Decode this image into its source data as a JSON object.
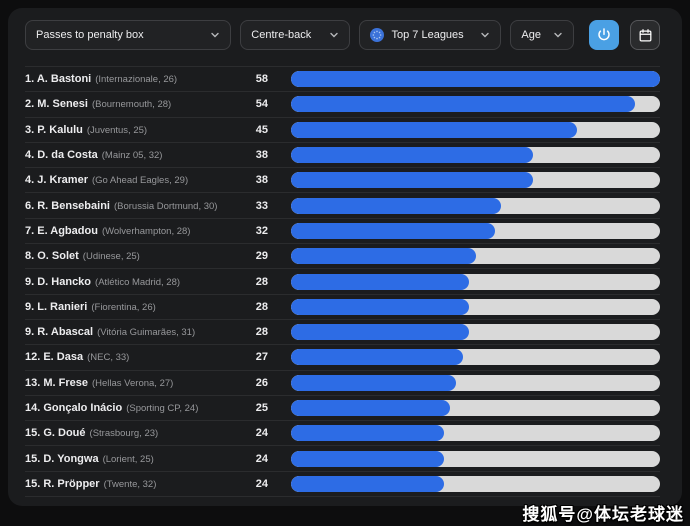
{
  "toolbar": {
    "metric": {
      "label": "Passes to penalty box"
    },
    "position": {
      "label": "Centre-back"
    },
    "league": {
      "label": "Top 7 Leagues"
    },
    "age": {
      "label": "Age"
    }
  },
  "list": {
    "max_value": 58,
    "players": [
      {
        "rank": "1",
        "name": "A. Bastoni",
        "club": "Internazionale",
        "age": 26,
        "value": 58
      },
      {
        "rank": "2",
        "name": "M. Senesi",
        "club": "Bournemouth",
        "age": 28,
        "value": 54
      },
      {
        "rank": "3",
        "name": "P. Kalulu",
        "club": "Juventus",
        "age": 25,
        "value": 45
      },
      {
        "rank": "4",
        "name": "D. da Costa",
        "club": "Mainz 05",
        "age": 32,
        "value": 38
      },
      {
        "rank": "4",
        "name": "J. Kramer",
        "club": "Go Ahead Eagles",
        "age": 29,
        "value": 38
      },
      {
        "rank": "6",
        "name": "R. Bensebaini",
        "club": "Borussia Dortmund",
        "age": 30,
        "value": 33
      },
      {
        "rank": "7",
        "name": "E. Agbadou",
        "club": "Wolverhampton",
        "age": 28,
        "value": 32
      },
      {
        "rank": "8",
        "name": "O. Solet",
        "club": "Udinese",
        "age": 25,
        "value": 29
      },
      {
        "rank": "9",
        "name": "D. Hancko",
        "club": "Atlético Madrid",
        "age": 28,
        "value": 28
      },
      {
        "rank": "9",
        "name": "L. Ranieri",
        "club": "Fiorentina",
        "age": 26,
        "value": 28
      },
      {
        "rank": "9",
        "name": "R. Abascal",
        "club": "Vitória Guimarães",
        "age": 31,
        "value": 28
      },
      {
        "rank": "12",
        "name": "E. Dasa",
        "club": "NEC",
        "age": 33,
        "value": 27
      },
      {
        "rank": "13",
        "name": "M. Frese",
        "club": "Hellas Verona",
        "age": 27,
        "value": 26
      },
      {
        "rank": "14",
        "name": "Gonçalo Inácio",
        "club": "Sporting CP",
        "age": 24,
        "value": 25
      },
      {
        "rank": "15",
        "name": "G. Doué",
        "club": "Strasbourg",
        "age": 23,
        "value": 24
      },
      {
        "rank": "15",
        "name": "D. Yongwa",
        "club": "Lorient",
        "age": 25,
        "value": 24
      },
      {
        "rank": "15",
        "name": "R. Pröpper",
        "club": "Twente",
        "age": 32,
        "value": 24
      }
    ]
  },
  "chart_data": {
    "type": "bar",
    "orientation": "horizontal",
    "title": "Passes to penalty box",
    "subtitle": "Centre-back · Top 7 Leagues",
    "categories": [
      "A. Bastoni",
      "M. Senesi",
      "P. Kalulu",
      "D. da Costa",
      "J. Kramer",
      "R. Bensebaini",
      "E. Agbadou",
      "O. Solet",
      "D. Hancko",
      "L. Ranieri",
      "R. Abascal",
      "E. Dasa",
      "M. Frese",
      "Gonçalo Inácio",
      "G. Doué",
      "D. Yongwa",
      "R. Pröpper"
    ],
    "values": [
      58,
      54,
      45,
      38,
      38,
      33,
      32,
      29,
      28,
      28,
      28,
      27,
      26,
      25,
      24,
      24,
      24
    ],
    "xlabel": "Passes to penalty box",
    "ylabel": "",
    "xlim": [
      0,
      58
    ],
    "grid": false,
    "legend": false
  },
  "watermark": "搜狐号@体坛老球迷",
  "colors": {
    "bar_fill": "#2d6ce5",
    "bar_track": "#d9d9d9",
    "accent_button": "#4aa0e4",
    "panel_bg": "#1b1c1e"
  }
}
